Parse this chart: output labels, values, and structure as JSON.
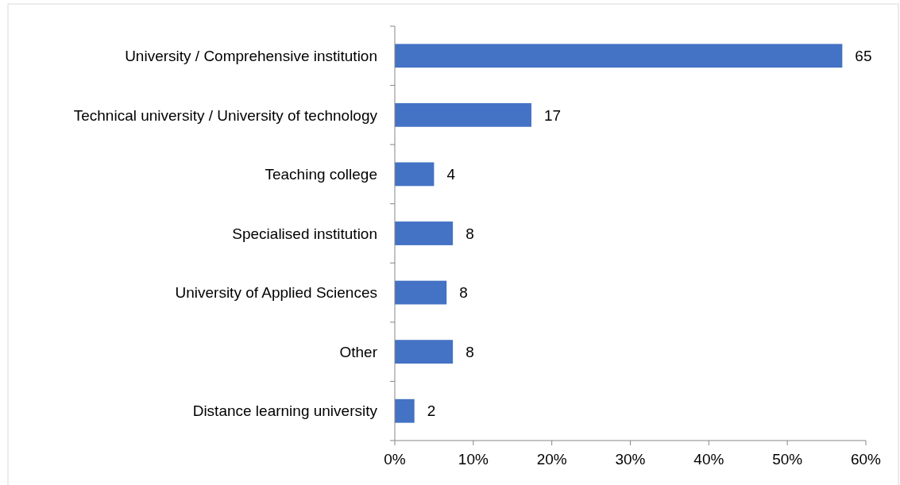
{
  "chart_data": {
    "type": "bar",
    "orientation": "horizontal",
    "categories": [
      "University / Comprehensive institution",
      "Technical university / University of technology",
      "Teaching college",
      "Specialised institution",
      "University of Applied Sciences ",
      "Other",
      "Distance learning university"
    ],
    "values": [
      57,
      17.4,
      5,
      7.4,
      6.6,
      7.4,
      2.5
    ],
    "annotations": [
      {
        "text": "65",
        "x": 57,
        "y": "University / Comprehensive institution"
      },
      {
        "text": "17",
        "x": 17.4,
        "y": "Technical university / University of technology"
      },
      {
        "text": "4",
        "x": 5,
        "y": "Teaching college"
      },
      {
        "text": "8",
        "x": 7.4,
        "y": "Specialised institution"
      },
      {
        "text": "8",
        "x": 6.6,
        "y": "University of Applied Sciences "
      },
      {
        "text": "8",
        "x": 7.4,
        "y": "Other"
      },
      {
        "text": "2",
        "x": 2.5,
        "y": "Distance learning university"
      }
    ],
    "color": "#4472c4",
    "xlim": [
      0,
      60
    ],
    "xticks": [
      {
        "value": 0,
        "label": "0%"
      },
      {
        "value": 10,
        "label": "10%"
      },
      {
        "value": 20,
        "label": "20%"
      },
      {
        "value": 30,
        "label": "30%"
      },
      {
        "value": 40,
        "label": "40%"
      },
      {
        "value": 50,
        "label": "50%"
      },
      {
        "value": 60,
        "label": "60%"
      }
    ],
    "grid": false
  }
}
